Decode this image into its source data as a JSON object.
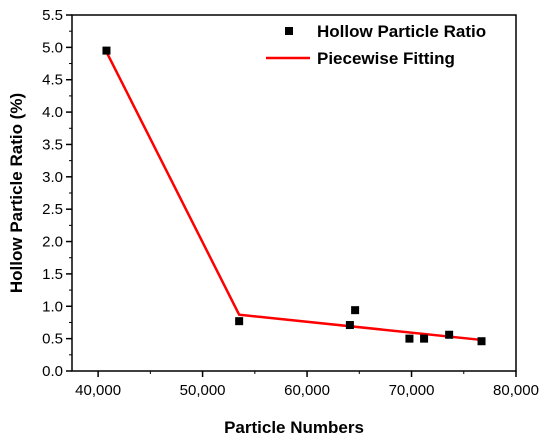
{
  "chart_data": {
    "type": "scatter",
    "title": "",
    "xlabel": "Particle Numbers",
    "ylabel": "Hollow Particle Ratio (%)",
    "xlim": [
      37500,
      80000
    ],
    "ylim": [
      0.0,
      5.5
    ],
    "x_ticks": [
      40000,
      50000,
      60000,
      70000,
      80000
    ],
    "x_tick_labels": [
      "40,000",
      "50,000",
      "60,000",
      "70,000",
      "80,000"
    ],
    "y_ticks": [
      0.0,
      0.5,
      1.0,
      1.5,
      2.0,
      2.5,
      3.0,
      3.5,
      4.0,
      4.5,
      5.0,
      5.5
    ],
    "y_tick_labels": [
      "0.0",
      "0.5",
      "1.0",
      "1.5",
      "2.0",
      "2.5",
      "3.0",
      "3.5",
      "4.0",
      "4.5",
      "5.0",
      "5.5"
    ],
    "grid": false,
    "legend_position": "top-right",
    "series": [
      {
        "name": "Hollow Particle Ratio",
        "kind": "scatter",
        "marker": "square",
        "color": "#000000",
        "x": [
          40800,
          53500,
          64100,
          64600,
          69800,
          71200,
          73600,
          76700
        ],
        "y": [
          4.95,
          0.77,
          0.71,
          0.94,
          0.5,
          0.5,
          0.56,
          0.46
        ]
      },
      {
        "name": "Piecewise Fitting",
        "kind": "line",
        "color": "#ff0000",
        "x": [
          40800,
          53500,
          76700
        ],
        "y": [
          4.93,
          0.87,
          0.48
        ]
      }
    ]
  }
}
